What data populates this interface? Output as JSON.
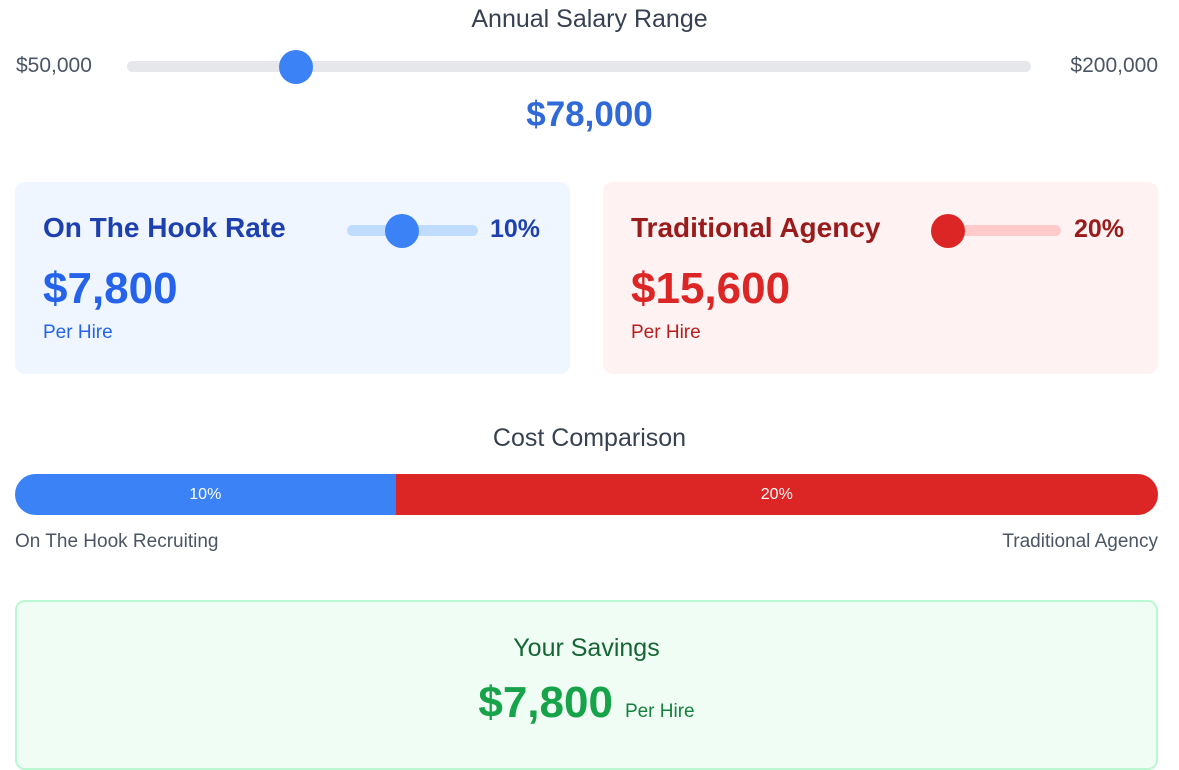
{
  "salary": {
    "title": "Annual Salary Range",
    "min_label": "$50,000",
    "max_label": "$200,000",
    "min": 50000,
    "max": 200000,
    "value": 78000,
    "value_label": "$78,000"
  },
  "cards": {
    "hook": {
      "title": "On The Hook Rate",
      "rate_label": "10%",
      "rate_slider_level": 0.42,
      "amount": "$7,800",
      "sub": "Per Hire"
    },
    "agency": {
      "title": "Traditional Agency",
      "rate_label": "20%",
      "rate_slider_level": 0.13,
      "amount": "$15,600",
      "sub": "Per Hire"
    }
  },
  "comparison": {
    "title": "Cost Comparison",
    "hook_share": 33.3,
    "agency_share": 66.7,
    "hook_label": "10%",
    "agency_label": "20%",
    "left_caption": "On The Hook Recruiting",
    "right_caption": "Traditional Agency"
  },
  "savings": {
    "title": "Your Savings",
    "amount": "$7,800",
    "sub": "Per Hire"
  },
  "colors": {
    "blue": "#3b82f6",
    "red": "#dc2626",
    "green": "#16a34a"
  }
}
